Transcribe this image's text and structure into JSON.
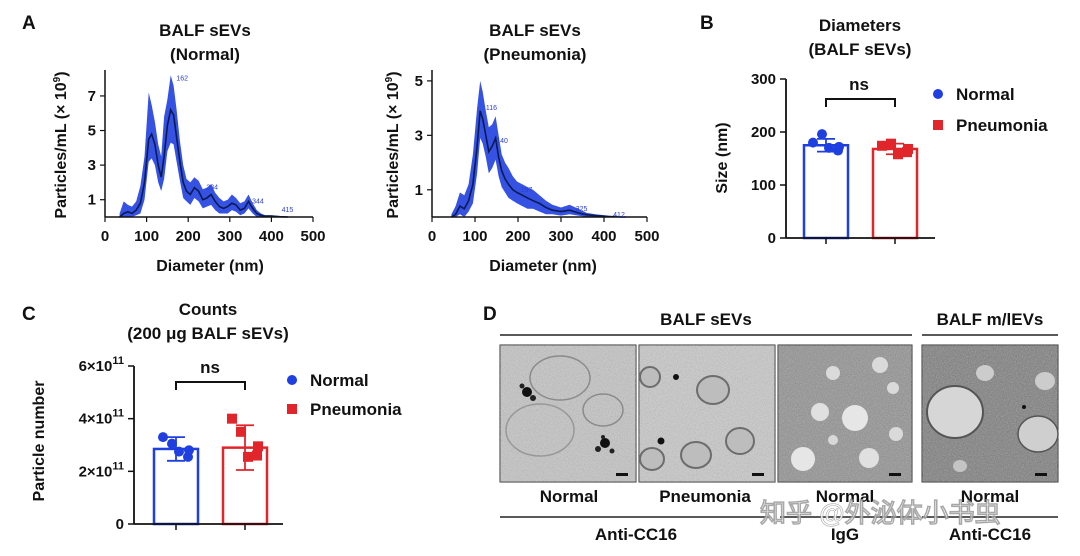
{
  "panel_labels": {
    "A": "A",
    "B": "B",
    "C": "C",
    "D": "D"
  },
  "colors": {
    "normal": "#1f3fe0",
    "pneumonia": "#e0262a",
    "nta_band": "#1f3fe0",
    "nta_line": "#0a1a55"
  },
  "chart_data": [
    {
      "id": "A1",
      "type": "area",
      "title_line1": "BALF sEVs",
      "title_line2": "(Normal)",
      "xlabel": "Diameter (nm)",
      "ylabel": "Particles/mL (× 10",
      "ylabel_exp": "9",
      "ylabel_close": ")",
      "xlim": [
        0,
        500
      ],
      "ylim": [
        0,
        8.5
      ],
      "xticks": [
        "0",
        "100",
        "200",
        "300",
        "400",
        "500"
      ],
      "yticks": [
        "1",
        "3",
        "5",
        "7"
      ],
      "x": [
        35,
        45,
        55,
        65,
        75,
        85,
        95,
        105,
        112,
        120,
        128,
        135,
        142,
        150,
        158,
        165,
        172,
        180,
        188,
        196,
        205,
        215,
        225,
        235,
        245,
        255,
        265,
        275,
        285,
        295,
        305,
        315,
        325,
        335,
        345,
        355,
        365,
        375,
        385,
        400,
        420,
        440
      ],
      "mean": [
        0,
        0.2,
        0.3,
        0.2,
        0.4,
        0.8,
        2.0,
        4.5,
        4.8,
        4.2,
        3.0,
        2.3,
        3.5,
        5.3,
        6.2,
        5.9,
        4.6,
        3.2,
        2.0,
        1.5,
        1.3,
        1.7,
        1.5,
        1.0,
        1.1,
        1.3,
        0.9,
        0.6,
        0.5,
        0.6,
        0.8,
        0.7,
        0.4,
        0.5,
        0.9,
        0.5,
        0.2,
        0.1,
        0.05,
        0.05,
        0.02,
        0
      ],
      "upper": [
        0.2,
        0.9,
        0.7,
        0.6,
        0.9,
        1.8,
        3.5,
        7.2,
        6.5,
        5.5,
        4.2,
        3.5,
        5.8,
        6.8,
        8.2,
        7.6,
        6.2,
        4.4,
        3.0,
        2.2,
        2.0,
        2.3,
        2.1,
        1.6,
        1.7,
        1.9,
        1.4,
        1.1,
        0.9,
        1.0,
        1.3,
        1.1,
        0.8,
        0.9,
        1.3,
        0.8,
        0.4,
        0.2,
        0.1,
        0.1,
        0.05,
        0
      ],
      "lower": [
        0,
        0,
        0,
        0,
        0.1,
        0.2,
        1.0,
        3.2,
        3.4,
        3.0,
        2.0,
        1.5,
        2.2,
        3.8,
        4.3,
        4.2,
        3.2,
        2.1,
        1.1,
        0.9,
        0.7,
        1.1,
        0.9,
        0.5,
        0.6,
        0.7,
        0.4,
        0.2,
        0.2,
        0.2,
        0.4,
        0.3,
        0.1,
        0.2,
        0.5,
        0.2,
        0,
        0,
        0,
        0,
        0,
        0
      ],
      "peak_labels": [
        {
          "x": 162,
          "y": 8.0,
          "text": "162"
        },
        {
          "x": 234,
          "y": 1.7,
          "text": "234"
        },
        {
          "x": 344,
          "y": 0.9,
          "text": "344"
        },
        {
          "x": 415,
          "y": 0.4,
          "text": "415"
        }
      ]
    },
    {
      "id": "A2",
      "type": "area",
      "title_line1": "BALF sEVs",
      "title_line2": "(Pneumonia)",
      "xlabel": "Diameter (nm)",
      "ylabel": "Particles/mL (× 10",
      "ylabel_exp": "9",
      "ylabel_close": ")",
      "xlim": [
        0,
        500
      ],
      "ylim": [
        0,
        5.4
      ],
      "xticks": [
        "0",
        "100",
        "200",
        "300",
        "400",
        "500"
      ],
      "yticks": [
        "1",
        "3",
        "5"
      ],
      "x": [
        45,
        55,
        65,
        75,
        85,
        95,
        105,
        112,
        118,
        125,
        132,
        140,
        148,
        155,
        162,
        170,
        178,
        188,
        198,
        210,
        222,
        235,
        250,
        265,
        280,
        300,
        320,
        340,
        360,
        380,
        410,
        430,
        450
      ],
      "mean": [
        0,
        0.1,
        0.4,
        0.3,
        0.6,
        1.2,
        2.6,
        3.9,
        3.6,
        3.0,
        2.4,
        2.6,
        2.9,
        2.2,
        1.7,
        1.4,
        1.2,
        1.0,
        0.9,
        0.8,
        0.7,
        0.6,
        0.5,
        0.35,
        0.25,
        0.2,
        0.25,
        0.15,
        0.08,
        0.05,
        0.02,
        0.01,
        0
      ],
      "upper": [
        0.1,
        0.4,
        0.9,
        0.8,
        1.2,
        2.3,
        4.0,
        5.0,
        4.6,
        3.9,
        3.3,
        3.4,
        3.7,
        3.0,
        2.3,
        2.0,
        1.8,
        1.5,
        1.3,
        1.2,
        1.1,
        1.0,
        0.8,
        0.6,
        0.45,
        0.35,
        0.45,
        0.3,
        0.15,
        0.1,
        0.05,
        0.02,
        0
      ],
      "lower": [
        0,
        0,
        0.1,
        0,
        0.2,
        0.5,
        1.6,
        2.9,
        2.7,
        2.2,
        1.6,
        1.8,
        2.1,
        1.5,
        1.1,
        0.9,
        0.7,
        0.6,
        0.5,
        0.4,
        0.3,
        0.3,
        0.2,
        0.1,
        0.1,
        0.05,
        0.1,
        0.05,
        0,
        0,
        0,
        0,
        0
      ],
      "peak_labels": [
        {
          "x": 116,
          "y": 4.0,
          "text": "116"
        },
        {
          "x": 140,
          "y": 2.8,
          "text": "140"
        },
        {
          "x": 197,
          "y": 1.0,
          "text": "197"
        },
        {
          "x": 325,
          "y": 0.3,
          "text": "325"
        },
        {
          "x": 412,
          "y": 0.08,
          "text": "412"
        }
      ]
    },
    {
      "id": "B",
      "type": "bar",
      "title_line1": "Diameters",
      "title_line2": "(BALF sEVs)",
      "ylabel": "Size (nm)",
      "ylim": [
        0,
        300
      ],
      "yticks": [
        "0",
        "100",
        "200",
        "300"
      ],
      "categories": [
        "Normal",
        "Pneumonia"
      ],
      "series": [
        {
          "name": "Normal",
          "mean": 175,
          "sd": 12,
          "points": [
            180,
            196,
            165,
            170,
            172
          ]
        },
        {
          "name": "Pneumonia",
          "mean": 168,
          "sd": 10,
          "points": [
            174,
            178,
            162,
            158,
            168
          ]
        }
      ],
      "significance": "ns",
      "legend": [
        "Normal",
        "Pneumonia"
      ]
    },
    {
      "id": "C",
      "type": "bar",
      "title_line1": "Counts",
      "title_line2": "(200 μg BALF sEVs)",
      "ylabel": "Particle number",
      "ylim": [
        0,
        600000000000.0
      ],
      "yticks": [
        {
          "base": "0",
          "exp": ""
        },
        {
          "base": "2×10",
          "exp": "11"
        },
        {
          "base": "4×10",
          "exp": "11"
        },
        {
          "base": "6×10",
          "exp": "11"
        }
      ],
      "categories": [
        "Normal",
        "Pneumonia"
      ],
      "series": [
        {
          "name": "Normal",
          "mean": 285000000000.0,
          "sd": 45000000000.0,
          "points": [
            330000000000.0,
            305000000000.0,
            255000000000.0,
            275000000000.0,
            280000000000.0
          ]
        },
        {
          "name": "Pneumonia",
          "mean": 290000000000.0,
          "sd": 85000000000.0,
          "points": [
            400000000000.0,
            350000000000.0,
            260000000000.0,
            255000000000.0,
            295000000000.0
          ]
        }
      ],
      "significance": "ns",
      "legend": [
        "Normal",
        "Pneumonia"
      ]
    }
  ],
  "panel_d": {
    "header_left": "BALF sEVs",
    "header_right": "BALF m/lEVs",
    "images": [
      {
        "caption": "Normal"
      },
      {
        "caption": "Pneumonia"
      },
      {
        "caption": "Normal"
      },
      {
        "caption": "Normal"
      }
    ],
    "groups": [
      "Anti-CC16",
      "IgG",
      "Anti-CC16"
    ]
  },
  "watermark": "知乎 @外泌体小书虫"
}
